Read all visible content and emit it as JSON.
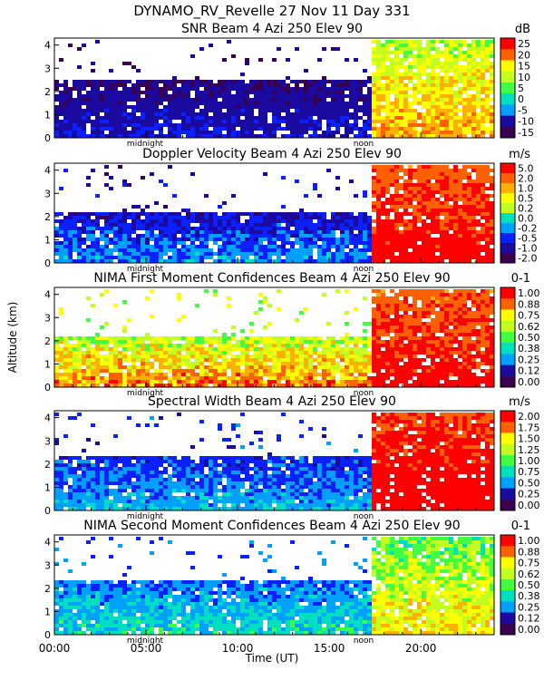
{
  "figure_title": "DYNAMO_RV_Revelle  27 Nov 11 Day 331",
  "y_axis_label": "Altitude (km)",
  "x_axis_label": "Time (UT)",
  "x_tick_labels": [
    "00:00",
    "05:00",
    "10:00",
    "15:00",
    "20:00"
  ],
  "marker_labels": [
    "midnight",
    "noon"
  ],
  "colors": {
    "background": "#ffffff",
    "frame": "#000000",
    "scale": [
      "#3a0050",
      "#1a0aa0",
      "#0a20ff",
      "#00a0ff",
      "#00e0c0",
      "#40ff40",
      "#c0ff20",
      "#ffff00",
      "#ffb000",
      "#ff6000",
      "#ff0000"
    ]
  },
  "chart_data": [
    {
      "type": "heatmap",
      "title": "SNR Beam 4 Azi 250 Elev 90",
      "units": "dB",
      "xlabel": "Time (UT)",
      "ylabel": "Altitude (km)",
      "xlim_hours": [
        0,
        24
      ],
      "ylim_km": [
        0,
        4.3
      ],
      "y_ticks": [
        "0",
        "1",
        "2",
        "3",
        "4"
      ],
      "colorbar_ticks": [
        "25",
        "20",
        "15",
        "10",
        "5",
        "0",
        "-5",
        "-10",
        "-15"
      ],
      "value_range": [
        -17,
        28
      ],
      "regimes": [
        {
          "hours": [
            0,
            17.2
          ],
          "top_km": 2.6,
          "low_value": -15,
          "high_value": -8
        },
        {
          "hours": [
            17.2,
            24
          ],
          "top_km": 4.3,
          "low_value": 5,
          "high_value": 20
        }
      ]
    },
    {
      "type": "heatmap",
      "title": "Doppler Velocity Beam 4 Azi 250 Elev 90",
      "units": "m/s",
      "xlabel": "Time (UT)",
      "ylabel": "Altitude (km)",
      "xlim_hours": [
        0,
        24
      ],
      "ylim_km": [
        0,
        4.3
      ],
      "y_ticks": [
        "0",
        "1",
        "2",
        "3",
        "4"
      ],
      "colorbar_ticks": [
        "5.0",
        "2.0",
        "1.0",
        "0.5",
        "0.2",
        "0.0",
        "-0.2",
        "-0.5",
        "-1.0",
        "-2.0"
      ],
      "value_range": [
        -2.5,
        5.5
      ],
      "regimes": [
        {
          "hours": [
            0,
            17.2
          ],
          "top_km": 2.3,
          "low_value": -2.0,
          "high_value": 0.3
        },
        {
          "hours": [
            17.2,
            24
          ],
          "top_km": 4.3,
          "low_value": 4.0,
          "high_value": 5.5
        }
      ]
    },
    {
      "type": "heatmap",
      "title": "NIMA First Moment Confidences Beam 4 Azi 250 Elev 90",
      "units": "0-1",
      "xlabel": "Time (UT)",
      "ylabel": "Altitude (km)",
      "xlim_hours": [
        0,
        24
      ],
      "ylim_km": [
        0,
        4.3
      ],
      "y_ticks": [
        "0",
        "1",
        "2",
        "3",
        "4"
      ],
      "colorbar_ticks": [
        "1.00",
        "0.88",
        "0.75",
        "0.62",
        "0.50",
        "0.38",
        "0.25",
        "0.12",
        "0.00"
      ],
      "value_range": [
        0,
        1
      ],
      "regimes": [
        {
          "hours": [
            0,
            17.2
          ],
          "top_km": 2.3,
          "low_value": 0.45,
          "high_value": 0.9
        },
        {
          "hours": [
            17.2,
            24
          ],
          "top_km": 4.3,
          "low_value": 0.8,
          "high_value": 1.0
        }
      ]
    },
    {
      "type": "heatmap",
      "title": "Spectral Width Beam 4 Azi 250 Elev 90",
      "units": "m/s",
      "xlabel": "Time (UT)",
      "ylabel": "Altitude (km)",
      "xlim_hours": [
        0,
        24
      ],
      "ylim_km": [
        0,
        4.3
      ],
      "y_ticks": [
        "0",
        "1",
        "2",
        "3",
        "4"
      ],
      "colorbar_ticks": [
        "2.00",
        "1.75",
        "1.50",
        "1.25",
        "1.00",
        "0.75",
        "0.50",
        "0.25",
        "0.00"
      ],
      "value_range": [
        0,
        2.1
      ],
      "regimes": [
        {
          "hours": [
            0,
            17.2
          ],
          "top_km": 2.4,
          "low_value": 0.3,
          "high_value": 0.8
        },
        {
          "hours": [
            17.2,
            24
          ],
          "top_km": 4.3,
          "low_value": 1.8,
          "high_value": 2.1
        }
      ]
    },
    {
      "type": "heatmap",
      "title": "NIMA Second Moment Confidences Beam 4 Azi 250 Elev 90",
      "units": "0-1",
      "xlabel": "Time (UT)",
      "ylabel": "Altitude (km)",
      "xlim_hours": [
        0,
        24
      ],
      "ylim_km": [
        0,
        4.3
      ],
      "y_ticks": [
        "0",
        "1",
        "2",
        "3",
        "4"
      ],
      "colorbar_ticks": [
        "1.00",
        "0.88",
        "0.75",
        "0.62",
        "0.50",
        "0.38",
        "0.25",
        "0.12",
        "0.00"
      ],
      "value_range": [
        0,
        1
      ],
      "regimes": [
        {
          "hours": [
            0,
            17.2
          ],
          "top_km": 2.4,
          "low_value": 0.2,
          "high_value": 0.45
        },
        {
          "hours": [
            17.2,
            24
          ],
          "top_km": 4.3,
          "low_value": 0.4,
          "high_value": 0.75
        }
      ]
    }
  ]
}
